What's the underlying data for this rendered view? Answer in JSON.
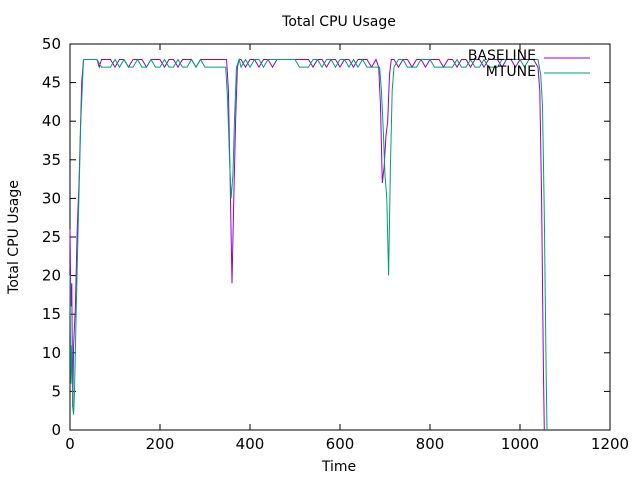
{
  "chart_data": {
    "type": "line",
    "title": "Total CPU Usage",
    "xlabel": "Time",
    "ylabel": "Total CPU Usage",
    "xlim": [
      0,
      1200
    ],
    "ylim": [
      0,
      50
    ],
    "xticks": [
      0,
      200,
      400,
      600,
      800,
      1000,
      1200
    ],
    "yticks": [
      0,
      5,
      10,
      15,
      20,
      25,
      30,
      35,
      40,
      45,
      50
    ],
    "grid": false,
    "legend_position": "top-right",
    "series": [
      {
        "name": "BASELINE",
        "color": "#9400d3",
        "points": [
          [
            0,
            26
          ],
          [
            2,
            16
          ],
          [
            4,
            19
          ],
          [
            6,
            3
          ],
          [
            8,
            11
          ],
          [
            12,
            16
          ],
          [
            16,
            26
          ],
          [
            20,
            32
          ],
          [
            26,
            45
          ],
          [
            30,
            48
          ],
          [
            40,
            48
          ],
          [
            50,
            48
          ],
          [
            60,
            48
          ],
          [
            65,
            47
          ],
          [
            70,
            48
          ],
          [
            80,
            48
          ],
          [
            90,
            48
          ],
          [
            100,
            47
          ],
          [
            110,
            48
          ],
          [
            120,
            48
          ],
          [
            130,
            47
          ],
          [
            140,
            48
          ],
          [
            150,
            48
          ],
          [
            160,
            48
          ],
          [
            170,
            47
          ],
          [
            180,
            48
          ],
          [
            190,
            48
          ],
          [
            200,
            48
          ],
          [
            210,
            47
          ],
          [
            220,
            48
          ],
          [
            230,
            48
          ],
          [
            240,
            47
          ],
          [
            250,
            48
          ],
          [
            260,
            48
          ],
          [
            270,
            48
          ],
          [
            280,
            47
          ],
          [
            290,
            48
          ],
          [
            300,
            48
          ],
          [
            310,
            48
          ],
          [
            320,
            48
          ],
          [
            330,
            48
          ],
          [
            340,
            48
          ],
          [
            348,
            48
          ],
          [
            352,
            44
          ],
          [
            356,
            32
          ],
          [
            360,
            19
          ],
          [
            364,
            30
          ],
          [
            368,
            40
          ],
          [
            372,
            47
          ],
          [
            376,
            48
          ],
          [
            380,
            48
          ],
          [
            390,
            47
          ],
          [
            400,
            48
          ],
          [
            410,
            48
          ],
          [
            420,
            47
          ],
          [
            430,
            48
          ],
          [
            440,
            48
          ],
          [
            450,
            47
          ],
          [
            460,
            48
          ],
          [
            470,
            48
          ],
          [
            480,
            48
          ],
          [
            490,
            48
          ],
          [
            500,
            48
          ],
          [
            510,
            48
          ],
          [
            520,
            48
          ],
          [
            530,
            48
          ],
          [
            540,
            47
          ],
          [
            550,
            48
          ],
          [
            560,
            48
          ],
          [
            570,
            47
          ],
          [
            580,
            48
          ],
          [
            590,
            48
          ],
          [
            600,
            47
          ],
          [
            610,
            48
          ],
          [
            620,
            48
          ],
          [
            630,
            47
          ],
          [
            640,
            48
          ],
          [
            650,
            48
          ],
          [
            660,
            48
          ],
          [
            670,
            47
          ],
          [
            680,
            48
          ],
          [
            686,
            47
          ],
          [
            690,
            42
          ],
          [
            694,
            32
          ],
          [
            698,
            34
          ],
          [
            702,
            38
          ],
          [
            706,
            40
          ],
          [
            710,
            46
          ],
          [
            714,
            48
          ],
          [
            720,
            48
          ],
          [
            730,
            47
          ],
          [
            740,
            48
          ],
          [
            750,
            48
          ],
          [
            760,
            47
          ],
          [
            770,
            48
          ],
          [
            780,
            48
          ],
          [
            790,
            47
          ],
          [
            800,
            48
          ],
          [
            810,
            48
          ],
          [
            820,
            48
          ],
          [
            830,
            47
          ],
          [
            840,
            48
          ],
          [
            850,
            48
          ],
          [
            860,
            47
          ],
          [
            870,
            48
          ],
          [
            880,
            48
          ],
          [
            890,
            47
          ],
          [
            900,
            48
          ],
          [
            910,
            48
          ],
          [
            920,
            47
          ],
          [
            930,
            48
          ],
          [
            940,
            48
          ],
          [
            950,
            48
          ],
          [
            960,
            47
          ],
          [
            970,
            48
          ],
          [
            980,
            48
          ],
          [
            990,
            47
          ],
          [
            1000,
            48
          ],
          [
            1010,
            48
          ],
          [
            1020,
            48
          ],
          [
            1030,
            48
          ],
          [
            1040,
            47
          ],
          [
            1044,
            44
          ],
          [
            1048,
            30
          ],
          [
            1052,
            8
          ],
          [
            1054,
            0
          ]
        ]
      },
      {
        "name": "MTUNE",
        "color": "#009e73",
        "points": [
          [
            0,
            20
          ],
          [
            2,
            6
          ],
          [
            4,
            11
          ],
          [
            6,
            3
          ],
          [
            8,
            2
          ],
          [
            10,
            5
          ],
          [
            14,
            16
          ],
          [
            18,
            26
          ],
          [
            24,
            40
          ],
          [
            30,
            48
          ],
          [
            40,
            48
          ],
          [
            50,
            48
          ],
          [
            60,
            48
          ],
          [
            70,
            47
          ],
          [
            80,
            47
          ],
          [
            90,
            47
          ],
          [
            100,
            48
          ],
          [
            110,
            47
          ],
          [
            120,
            48
          ],
          [
            130,
            47
          ],
          [
            140,
            47
          ],
          [
            150,
            48
          ],
          [
            160,
            47
          ],
          [
            170,
            47
          ],
          [
            180,
            48
          ],
          [
            190,
            47
          ],
          [
            200,
            47
          ],
          [
            210,
            48
          ],
          [
            220,
            47
          ],
          [
            230,
            47
          ],
          [
            240,
            48
          ],
          [
            250,
            47
          ],
          [
            260,
            47
          ],
          [
            270,
            48
          ],
          [
            280,
            47
          ],
          [
            290,
            48
          ],
          [
            300,
            47
          ],
          [
            310,
            47
          ],
          [
            320,
            47
          ],
          [
            330,
            47
          ],
          [
            340,
            47
          ],
          [
            346,
            47
          ],
          [
            350,
            43
          ],
          [
            354,
            36
          ],
          [
            358,
            30
          ],
          [
            362,
            33
          ],
          [
            366,
            41
          ],
          [
            370,
            47
          ],
          [
            376,
            48
          ],
          [
            380,
            47
          ],
          [
            390,
            48
          ],
          [
            400,
            47
          ],
          [
            410,
            48
          ],
          [
            420,
            48
          ],
          [
            430,
            47
          ],
          [
            440,
            48
          ],
          [
            450,
            48
          ],
          [
            460,
            48
          ],
          [
            470,
            48
          ],
          [
            480,
            48
          ],
          [
            490,
            48
          ],
          [
            500,
            48
          ],
          [
            510,
            47
          ],
          [
            520,
            47
          ],
          [
            530,
            47
          ],
          [
            540,
            48
          ],
          [
            550,
            48
          ],
          [
            560,
            47
          ],
          [
            570,
            48
          ],
          [
            580,
            48
          ],
          [
            590,
            47
          ],
          [
            600,
            48
          ],
          [
            610,
            48
          ],
          [
            620,
            47
          ],
          [
            630,
            48
          ],
          [
            640,
            47
          ],
          [
            650,
            48
          ],
          [
            660,
            47
          ],
          [
            670,
            47
          ],
          [
            680,
            47
          ],
          [
            688,
            47
          ],
          [
            692,
            44
          ],
          [
            696,
            39
          ],
          [
            700,
            33
          ],
          [
            704,
            30
          ],
          [
            708,
            20
          ],
          [
            712,
            34
          ],
          [
            716,
            44
          ],
          [
            720,
            47
          ],
          [
            730,
            48
          ],
          [
            740,
            48
          ],
          [
            750,
            47
          ],
          [
            760,
            47
          ],
          [
            770,
            47
          ],
          [
            780,
            48
          ],
          [
            790,
            48
          ],
          [
            800,
            48
          ],
          [
            810,
            47
          ],
          [
            820,
            47
          ],
          [
            830,
            47
          ],
          [
            840,
            47
          ],
          [
            850,
            47
          ],
          [
            860,
            48
          ],
          [
            870,
            47
          ],
          [
            880,
            47
          ],
          [
            890,
            48
          ],
          [
            900,
            47
          ],
          [
            910,
            47
          ],
          [
            920,
            48
          ],
          [
            930,
            47
          ],
          [
            940,
            47
          ],
          [
            950,
            47
          ],
          [
            960,
            48
          ],
          [
            970,
            48
          ],
          [
            980,
            48
          ],
          [
            990,
            48
          ],
          [
            1000,
            48
          ],
          [
            1010,
            47
          ],
          [
            1020,
            48
          ],
          [
            1030,
            48
          ],
          [
            1040,
            48
          ],
          [
            1046,
            46
          ],
          [
            1050,
            42
          ],
          [
            1054,
            28
          ],
          [
            1058,
            8
          ],
          [
            1060,
            0
          ]
        ]
      }
    ]
  }
}
